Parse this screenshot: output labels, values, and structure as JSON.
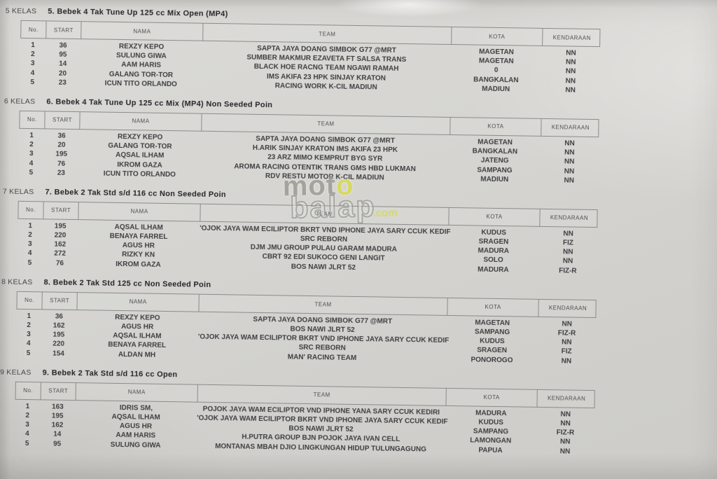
{
  "watermark": {
    "part1": "mot",
    "part2": "o",
    "part3": "balap",
    "part4": ".com"
  },
  "columns": [
    "No.",
    "START",
    "NAMA",
    "TEAM",
    "KOTA",
    "KENDARAAN"
  ],
  "column_keys": [
    "no",
    "start",
    "nama",
    "team",
    "kota",
    "kendaraan"
  ],
  "tables": [
    {
      "class_no": "5",
      "class_word": "KELAS",
      "title": "5. Bebek 4 Tak Tune Up 125 cc Mix Open (MP4)",
      "rows": [
        {
          "no": "1",
          "start": "36",
          "nama": "REXZY KEPO",
          "team": "SAPTA JAYA DOANG SIMBOK G77 @MRT",
          "kota": "MAGETAN",
          "kendaraan": "NN"
        },
        {
          "no": "2",
          "start": "95",
          "nama": "SULUNG GIWA",
          "team": "SUMBER MAKMUR EZAVETA FT SALSA TRANS",
          "kota": "MAGETAN",
          "kendaraan": "NN"
        },
        {
          "no": "3",
          "start": "14",
          "nama": "AAM HARIS",
          "team": "BLACK HOE RACNG TEAM NGAWI RAMAH",
          "kota": "0",
          "kendaraan": "NN"
        },
        {
          "no": "4",
          "start": "20",
          "nama": "GALANG TOR-TOR",
          "team": "IMS AKIFA 23 HPK SINJAY KRATON",
          "kota": "BANGKALAN",
          "kendaraan": "NN"
        },
        {
          "no": "5",
          "start": "23",
          "nama": "ICUN TITO ORLANDO",
          "team": "RACING WORK K-CIL MADIUN",
          "kota": "MADIUN",
          "kendaraan": "NN"
        }
      ]
    },
    {
      "class_no": "6",
      "class_word": "KELAS",
      "title": "6. Bebek 4 Tak Tune Up 125 cc Mix  (MP4) Non Seeded Poin",
      "rows": [
        {
          "no": "1",
          "start": "36",
          "nama": "REXZY KEPO",
          "team": "SAPTA JAYA DOANG SIMBOK G77 @MRT",
          "kota": "MAGETAN",
          "kendaraan": "NN"
        },
        {
          "no": "2",
          "start": "20",
          "nama": "GALANG TOR-TOR",
          "team": "H.ARIK SINJAY KRATON IMS AKIFA 23 HPK",
          "kota": "BANGKALAN",
          "kendaraan": "NN"
        },
        {
          "no": "3",
          "start": "195",
          "nama": "AQSAL ILHAM",
          "team": "23 ARZ MIMO KEMPRUT BYG SYR",
          "kota": "JATENG",
          "kendaraan": "NN"
        },
        {
          "no": "4",
          "start": "76",
          "nama": "IKROM GAZA",
          "team": "AROMA RACING OTENTIK TRANS GMS HBD LUKMAN",
          "kota": "SAMPANG",
          "kendaraan": "NN"
        },
        {
          "no": "5",
          "start": "23",
          "nama": "ICUN TITO ORLANDO",
          "team": "RDV RESTU MOTOR K-CIL MADIUN",
          "kota": "MADIUN",
          "kendaraan": "NN"
        }
      ]
    },
    {
      "class_no": "7",
      "class_word": "KELAS",
      "title": "7. Bebek 2 Tak Std s/d 116 cc Non Seeded Poin",
      "rows": [
        {
          "no": "1",
          "start": "195",
          "nama": "AQSAL ILHAM",
          "team": "'OJOK JAYA WAM ECILIPTOR BKRT VND IPHONE JAYA SARY CCUK KEDIF",
          "kota": "KUDUS",
          "kendaraan": "NN"
        },
        {
          "no": "2",
          "start": "220",
          "nama": "BENAYA FARREL",
          "team": "SRC REBORN",
          "kota": "SRAGEN",
          "kendaraan": "FIZ"
        },
        {
          "no": "3",
          "start": "162",
          "nama": "AGUS HR",
          "team": "DJM JMU GROUP PULAU GARAM MADURA",
          "kota": "MADURA",
          "kendaraan": "NN"
        },
        {
          "no": "4",
          "start": "272",
          "nama": "RIZKY KN",
          "team": "CBRT 92 EDI SUKOCO GENI LANGIT",
          "kota": "SOLO",
          "kendaraan": "NN"
        },
        {
          "no": "5",
          "start": "76",
          "nama": "IKROM GAZA",
          "team": "BOS NAWI JLRT 52",
          "kota": "MADURA",
          "kendaraan": "FIZ-R"
        }
      ]
    },
    {
      "class_no": "8",
      "class_word": "KELAS",
      "title": "8. Bebek 2 Tak Std 125 cc Non Seeded Poin",
      "rows": [
        {
          "no": "1",
          "start": "36",
          "nama": "REXZY KEPO",
          "team": "SAPTA JAYA DOANG SIMBOK G77 @MRT",
          "kota": "MAGETAN",
          "kendaraan": "NN"
        },
        {
          "no": "2",
          "start": "162",
          "nama": "AGUS HR",
          "team": "BOS NAWI JLRT 52",
          "kota": "SAMPANG",
          "kendaraan": "FIZ-R"
        },
        {
          "no": "3",
          "start": "195",
          "nama": "AQSAL ILHAM",
          "team": "'OJOK JAYA WAM ECILIPTOR BKRT VND IPHONE JAYA SARY CCUK KEDIF",
          "kota": "KUDUS",
          "kendaraan": "NN"
        },
        {
          "no": "4",
          "start": "220",
          "nama": "BENAYA FARREL",
          "team": "SRC REBORN",
          "kota": "SRAGEN",
          "kendaraan": "FIZ"
        },
        {
          "no": "5",
          "start": "154",
          "nama": "ALDAN MH",
          "team": "MAN' RACING TEAM",
          "kota": "PONOROGO",
          "kendaraan": "NN"
        }
      ]
    },
    {
      "class_no": "9",
      "class_word": "KELAS",
      "title": "9. Bebek 2 Tak Std s/d 116 cc Open",
      "rows": [
        {
          "no": "1",
          "start": "163",
          "nama": "IDRIS SM,",
          "team": "POJOK JAYA WAM ECILIPTOR VND IPHONE YANA SARY CCUK KEDIRI",
          "kota": "MADURA",
          "kendaraan": "NN"
        },
        {
          "no": "2",
          "start": "195",
          "nama": "AQSAL ILHAM",
          "team": "'OJOK JAYA WAM ECILIPTOR BKRT VND IPHONE JAYA SARY CCUK KEDIF",
          "kota": "KUDUS",
          "kendaraan": "NN"
        },
        {
          "no": "3",
          "start": "162",
          "nama": "AGUS HR",
          "team": "BOS NAWI JLRT 52",
          "kota": "SAMPANG",
          "kendaraan": "FIZ-R"
        },
        {
          "no": "4",
          "start": "14",
          "nama": "AAM HARIS",
          "team": "H.PUTRA GROUP BJN POJOK JAYA IVAN CELL",
          "kota": "LAMONGAN",
          "kendaraan": "NN"
        },
        {
          "no": "5",
          "start": "95",
          "nama": "SULUNG GIWA",
          "team": "MONTANAS MBAH DJIO LINGKUNGAN HIDUP TULUNGAGUNG",
          "kota": "PAPUA",
          "kendaraan": "NN"
        }
      ]
    }
  ]
}
